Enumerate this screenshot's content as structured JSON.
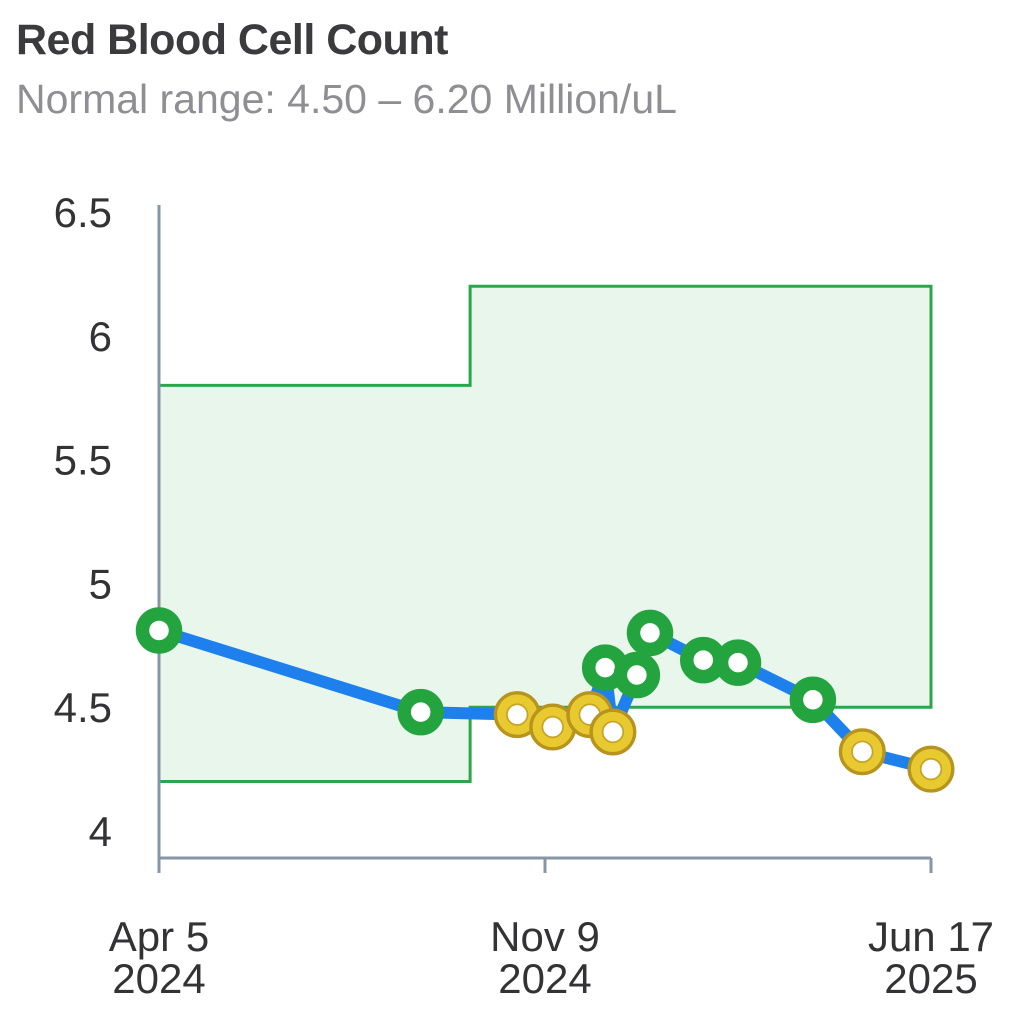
{
  "header": {
    "title": "Red Blood Cell Count",
    "subtitle": "Normal range: 4.50 – 6.20 Million/uL"
  },
  "chart_data": {
    "type": "line",
    "title": "Red Blood Cell Count",
    "unit": "Million/uL",
    "normal_range": {
      "low": 4.5,
      "high": 6.2,
      "label": "4.50 – 6.20 Million/uL"
    },
    "grid": false,
    "legend_position": "none",
    "y_axis": {
      "min": 3.89,
      "max": 6.53,
      "ticks": [
        6.5,
        6,
        5.5,
        5,
        4.5,
        4
      ],
      "tick_labels": [
        "6.5",
        "6",
        "5.5",
        "5",
        "4.5",
        "4"
      ]
    },
    "x_axis": {
      "ticks": [
        {
          "label_line1": "Apr 5",
          "label_line2": "2024",
          "frac": 0
        },
        {
          "label_line1": "Nov 9",
          "label_line2": "2024",
          "frac": 0.5
        },
        {
          "label_line1": "Jun 17",
          "label_line2": "2025",
          "frac": 1
        }
      ]
    },
    "normal_range_bands": [
      {
        "x_start_frac": 0,
        "x_end_frac": 0.403,
        "low": 4.2,
        "high": 5.8
      },
      {
        "x_start_frac": 0.403,
        "x_end_frac": 1,
        "low": 4.5,
        "high": 6.2
      }
    ],
    "series": [
      {
        "name": "Red Blood Cell Count",
        "points": [
          {
            "x_frac": 0.0,
            "value": 4.81,
            "in_range": true
          },
          {
            "x_frac": 0.339,
            "value": 4.48,
            "in_range": true
          },
          {
            "x_frac": 0.464,
            "value": 4.47,
            "in_range": false
          },
          {
            "x_frac": 0.51,
            "value": 4.42,
            "in_range": false
          },
          {
            "x_frac": 0.558,
            "value": 4.47,
            "in_range": false
          },
          {
            "x_frac": 0.578,
            "value": 4.66,
            "in_range": true
          },
          {
            "x_frac": 0.588,
            "value": 4.4,
            "in_range": false
          },
          {
            "x_frac": 0.619,
            "value": 4.63,
            "in_range": true
          },
          {
            "x_frac": 0.636,
            "value": 4.8,
            "in_range": true
          },
          {
            "x_frac": 0.705,
            "value": 4.69,
            "in_range": true
          },
          {
            "x_frac": 0.75,
            "value": 4.68,
            "in_range": true
          },
          {
            "x_frac": 0.847,
            "value": 4.53,
            "in_range": true
          },
          {
            "x_frac": 0.911,
            "value": 4.32,
            "in_range": false
          },
          {
            "x_frac": 1.0,
            "value": 4.25,
            "in_range": false
          }
        ]
      }
    ],
    "colors": {
      "line": "#1e80ec",
      "marker_in_range": "#24a43f",
      "marker_out_of_range": "#e9c930",
      "marker_out_of_range_edge": "#b6941e",
      "band_fill": "#e9f6ec",
      "band_border": "#2aa74b",
      "axis": "#8796a6",
      "tick_text": "#333336",
      "title_text": "#3b3b3d",
      "subtitle_text": "#8e8e93"
    }
  }
}
